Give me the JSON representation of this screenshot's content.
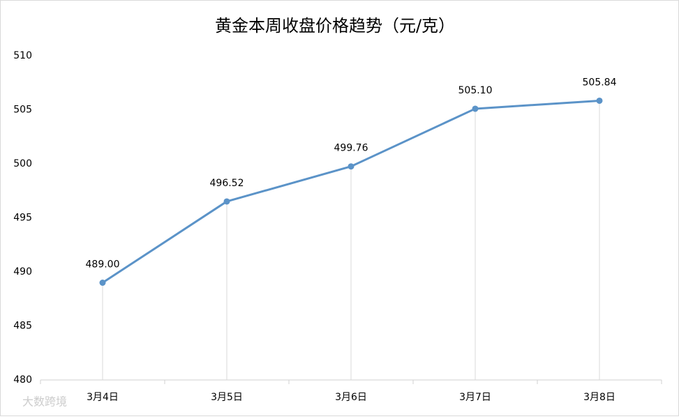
{
  "chart_data": {
    "type": "line",
    "title": "黄金本周收盘价格趋势（元/克）",
    "categories": [
      "3月4日",
      "3月5日",
      "3月6日",
      "3月7日",
      "3月8日"
    ],
    "values": [
      489.0,
      496.52,
      499.76,
      505.1,
      505.84
    ],
    "value_labels": [
      "489.00",
      "496.52",
      "499.76",
      "505.10",
      "505.84"
    ],
    "color": "#5b93c8",
    "ylim": [
      480,
      510
    ],
    "yticks": [
      480,
      485,
      490,
      495,
      500,
      505,
      510
    ],
    "grid": false,
    "watermark": "大数跨境"
  }
}
